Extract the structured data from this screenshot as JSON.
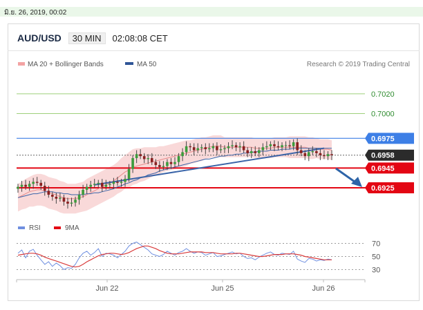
{
  "topbar": {
    "datetime": "มิ.ย. 26, 2019, 00:02"
  },
  "header": {
    "pair": "AUD/USD",
    "timeframe": "30 MIN",
    "time": "02:08:08 CET"
  },
  "legend": {
    "ma20": "MA 20 + Bollinger Bands",
    "ma50": "MA 50",
    "research": "Research © 2019 Trading Central"
  },
  "rsi_legend": {
    "rsi": "RSI",
    "ma9": "9MA"
  },
  "colors": {
    "candle_up": "#3c9c3c",
    "candle_down": "#8a2020",
    "bollinger": "#f6c9c9",
    "ma20": "#e88a8a",
    "ma50": "#3a64a8",
    "resistance_blue": "#3d7fe6",
    "support_red": "#e30613",
    "target_green": "#9ed07a",
    "arrow": "#2d64a8",
    "rsi": "#6f8fe0",
    "rsi_ma": "#d93b3b"
  },
  "chart_data": [
    {
      "type": "candlestick",
      "title": "AUD/USD 30 MIN",
      "ylim": [
        0.6895,
        0.7045
      ],
      "x_ticks": [
        "Jun 22",
        "Jun 25",
        "Jun 26"
      ],
      "levels": [
        {
          "value": 0.702,
          "label": "0.7020",
          "kind": "target"
        },
        {
          "value": 0.7,
          "label": "0.7000",
          "kind": "target"
        },
        {
          "value": 0.6975,
          "label": "0.6975",
          "kind": "resistance"
        },
        {
          "value": 0.6958,
          "label": "0.6958",
          "kind": "current"
        },
        {
          "value": 0.6945,
          "label": "0.6945",
          "kind": "pivot"
        },
        {
          "value": 0.6925,
          "label": "0.6925",
          "kind": "support"
        }
      ],
      "close": [
        0.6926,
        0.6928,
        0.6926,
        0.6929,
        0.6931,
        0.693,
        0.6927,
        0.6922,
        0.6918,
        0.6916,
        0.6914,
        0.6915,
        0.6911,
        0.6909,
        0.691,
        0.6913,
        0.6918,
        0.6923,
        0.6926,
        0.6928,
        0.6929,
        0.693,
        0.6926,
        0.6928,
        0.6929,
        0.6931,
        0.693,
        0.6931,
        0.6934,
        0.6944,
        0.6955,
        0.6959,
        0.6957,
        0.6954,
        0.6955,
        0.6951,
        0.6948,
        0.6946,
        0.6947,
        0.6951,
        0.6949,
        0.6951,
        0.6957,
        0.6961,
        0.6967,
        0.6966,
        0.6963,
        0.6965,
        0.6966,
        0.6964,
        0.6965,
        0.6967,
        0.6963,
        0.6964,
        0.6965,
        0.6967,
        0.6968,
        0.6966,
        0.6967,
        0.6963,
        0.696,
        0.6962,
        0.696,
        0.6963,
        0.6966,
        0.6967,
        0.6969,
        0.6967,
        0.6966,
        0.6968,
        0.6968,
        0.6967,
        0.6971,
        0.6963,
        0.696,
        0.6957,
        0.6961,
        0.6962,
        0.696,
        0.6958,
        0.6957,
        0.6959,
        0.6958
      ],
      "ma20": [
        0.6915,
        0.6917,
        0.6919,
        0.6921,
        0.6922,
        0.6923,
        0.6923,
        0.6922,
        0.692,
        0.6919,
        0.6918,
        0.6916,
        0.6915,
        0.6914,
        0.6914,
        0.6914,
        0.6915,
        0.6916,
        0.6918,
        0.692,
        0.6922,
        0.6924,
        0.6926,
        0.6928,
        0.693,
        0.6932,
        0.6935,
        0.6938,
        0.6941,
        0.6943,
        0.6946,
        0.6947,
        0.6948,
        0.6949,
        0.695,
        0.6951,
        0.6952,
        0.6953,
        0.6954,
        0.6955,
        0.6956,
        0.6957,
        0.6958,
        0.6959,
        0.696,
        0.6961,
        0.6962,
        0.6963,
        0.6964,
        0.6965,
        0.6966,
        0.6967,
        0.6967,
        0.6967,
        0.6966,
        0.6966,
        0.6966,
        0.6966,
        0.6966,
        0.6966,
        0.6966,
        0.6966,
        0.6965,
        0.6965,
        0.6965,
        0.6965,
        0.6965,
        0.6966,
        0.6966,
        0.6966,
        0.6966,
        0.6966,
        0.6966,
        0.6966,
        0.6966,
        0.6966,
        0.6965,
        0.6965,
        0.6965,
        0.6964,
        0.6964,
        0.6964,
        0.6963
      ],
      "ma50": [
        0.6915,
        0.6916,
        0.6917,
        0.6918,
        0.6919,
        0.6919,
        0.692,
        0.6921,
        0.6921,
        0.6921,
        0.692,
        0.692,
        0.6919,
        0.6919,
        0.6918,
        0.6918,
        0.6918,
        0.6918,
        0.6919,
        0.6919,
        0.692,
        0.692,
        0.6921,
        0.6922,
        0.6923,
        0.6924,
        0.6926,
        0.6927,
        0.6929,
        0.693,
        0.6932,
        0.6933,
        0.6935,
        0.6936,
        0.6938,
        0.6939,
        0.694,
        0.6942,
        0.6943,
        0.6944,
        0.6945,
        0.6946,
        0.6947,
        0.6948,
        0.6949,
        0.695,
        0.6951,
        0.6952,
        0.6953,
        0.6954,
        0.6954,
        0.6955,
        0.6956,
        0.6957,
        0.6957,
        0.6958,
        0.6958,
        0.6959,
        0.6959,
        0.696,
        0.696,
        0.6961,
        0.6961,
        0.6962,
        0.6962,
        0.6962,
        0.6963,
        0.6963,
        0.6963,
        0.6964,
        0.6964,
        0.6964,
        0.6965,
        0.6965,
        0.6965,
        0.6965,
        0.6965,
        0.6965,
        0.6965,
        0.6965,
        0.6965,
        0.6965,
        0.6965
      ],
      "band_width": [
        0.0014,
        0.0014,
        0.0015,
        0.0015,
        0.0016,
        0.0016,
        0.0016,
        0.0016,
        0.0016,
        0.0016,
        0.0016,
        0.0016,
        0.0016,
        0.0015,
        0.0015,
        0.0015,
        0.0015,
        0.0015,
        0.0016,
        0.0016,
        0.0016,
        0.0016,
        0.0016,
        0.0016,
        0.0016,
        0.0016,
        0.0016,
        0.0017,
        0.0017,
        0.0018,
        0.0018,
        0.0018,
        0.0017,
        0.0017,
        0.0016,
        0.0015,
        0.0014,
        0.0014,
        0.0013,
        0.0013,
        0.0013,
        0.0013,
        0.0013,
        0.0013,
        0.0013,
        0.0012,
        0.0012,
        0.0012,
        0.0012,
        0.0011,
        0.0011,
        0.0011,
        0.0011,
        0.0011,
        0.001,
        0.001,
        0.001,
        0.001,
        0.001,
        0.001,
        0.001,
        0.001,
        0.001,
        0.001,
        0.001,
        0.001,
        0.001,
        0.001,
        0.001,
        0.001,
        0.001,
        0.0011,
        0.0011,
        0.0011,
        0.0011,
        0.0011,
        0.0011,
        0.0011,
        0.001,
        0.001,
        0.001,
        0.001,
        0.001
      ]
    },
    {
      "type": "line",
      "title": "RSI",
      "ylim": [
        20,
        80
      ],
      "y_ticks": [
        70,
        50,
        30
      ],
      "series": [
        {
          "name": "RSI",
          "values": [
            55,
            60,
            48,
            58,
            61,
            52,
            45,
            38,
            42,
            35,
            40,
            36,
            30,
            33,
            32,
            38,
            48,
            55,
            58,
            52,
            56,
            62,
            50,
            55,
            54,
            52,
            48,
            53,
            58,
            66,
            70,
            72,
            68,
            64,
            60,
            54,
            52,
            50,
            53,
            58,
            55,
            52,
            56,
            58,
            62,
            58,
            55,
            57,
            56,
            52,
            54,
            56,
            50,
            51,
            53,
            55,
            57,
            54,
            55,
            50,
            47,
            48,
            45,
            49,
            52,
            55,
            57,
            53,
            52,
            55,
            54,
            53,
            58,
            46,
            43,
            41,
            47,
            46,
            43,
            45,
            44,
            46,
            45
          ]
        },
        {
          "name": "9MA",
          "values": [
            52,
            53,
            54,
            55,
            55,
            54,
            52,
            49,
            47,
            45,
            43,
            41,
            39,
            37,
            35,
            34,
            35,
            38,
            42,
            45,
            48,
            51,
            53,
            54,
            55,
            55,
            54,
            53,
            54,
            56,
            59,
            62,
            64,
            66,
            66,
            64,
            62,
            59,
            57,
            55,
            54,
            54,
            54,
            55,
            56,
            57,
            57,
            57,
            57,
            56,
            56,
            56,
            55,
            54,
            54,
            54,
            54,
            55,
            55,
            54,
            53,
            52,
            51,
            50,
            50,
            51,
            52,
            53,
            53,
            53,
            54,
            54,
            54,
            53,
            52,
            50,
            49,
            48,
            47,
            46,
            45,
            45,
            45
          ]
        }
      ]
    }
  ]
}
